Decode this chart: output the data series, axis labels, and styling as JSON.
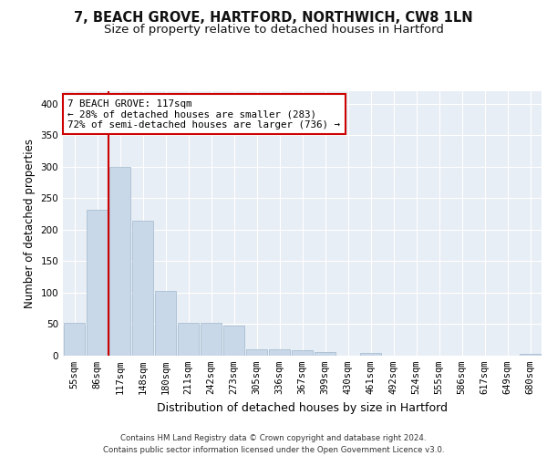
{
  "title_line1": "7, BEACH GROVE, HARTFORD, NORTHWICH, CW8 1LN",
  "title_line2": "Size of property relative to detached houses in Hartford",
  "xlabel": "Distribution of detached houses by size in Hartford",
  "ylabel": "Number of detached properties",
  "categories": [
    "55sqm",
    "86sqm",
    "117sqm",
    "148sqm",
    "180sqm",
    "211sqm",
    "242sqm",
    "273sqm",
    "305sqm",
    "336sqm",
    "367sqm",
    "399sqm",
    "430sqm",
    "461sqm",
    "492sqm",
    "524sqm",
    "555sqm",
    "586sqm",
    "617sqm",
    "649sqm",
    "680sqm"
  ],
  "values": [
    52,
    232,
    300,
    215,
    103,
    52,
    52,
    48,
    10,
    10,
    8,
    6,
    0,
    5,
    0,
    0,
    0,
    0,
    0,
    0,
    3
  ],
  "bar_color": "#c8d8e8",
  "bar_edge_color": "#a0b8cc",
  "subject_idx": 2,
  "annotation_text": "7 BEACH GROVE: 117sqm\n← 28% of detached houses are smaller (283)\n72% of semi-detached houses are larger (736) →",
  "annotation_box_color": "#ffffff",
  "annotation_box_edge_color": "#cc0000",
  "vline_color": "#cc0000",
  "ylim": [
    0,
    420
  ],
  "yticks": [
    0,
    50,
    100,
    150,
    200,
    250,
    300,
    350,
    400
  ],
  "background_color": "#e8eef5",
  "footer_line1": "Contains HM Land Registry data © Crown copyright and database right 2024.",
  "footer_line2": "Contains public sector information licensed under the Open Government Licence v3.0.",
  "title_fontsize": 10.5,
  "subtitle_fontsize": 9.5,
  "axis_label_fontsize": 8.5,
  "tick_fontsize": 7.5
}
